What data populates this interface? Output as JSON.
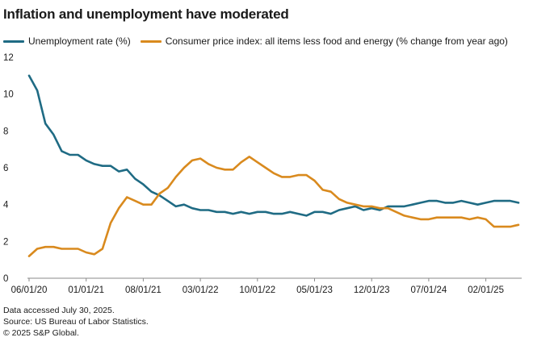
{
  "title": "Inflation and unemployment have moderated",
  "colors": {
    "unemployment": "#1f6b84",
    "cpi": "#d98a1e",
    "axis": "#8a8a8a"
  },
  "footer": {
    "line1": "Data accessed July 30, 2025.",
    "line2": "Source: US Bureau of Labor Statistics.",
    "line3": "© 2025 S&P Global."
  },
  "chart_data": {
    "type": "line",
    "title": "Inflation and unemployment have moderated",
    "xlabel": "",
    "ylabel": "",
    "ylim": [
      0,
      12
    ],
    "yticks": [
      0,
      2,
      4,
      6,
      8,
      10,
      12
    ],
    "xtick_labels": [
      "06/01/20",
      "01/01/21",
      "08/01/21",
      "03/01/22",
      "10/01/22",
      "05/01/23",
      "12/01/23",
      "07/01/24",
      "02/01/25"
    ],
    "xtick_index": [
      0,
      7,
      14,
      21,
      28,
      35,
      42,
      49,
      56
    ],
    "grid": false,
    "legend_position": "top",
    "start": "06/01/20",
    "end": "06/01/25",
    "frequency": "monthly",
    "series": [
      {
        "name": "Unemployment rate (%)",
        "color": "#1f6b84",
        "values": [
          11.0,
          10.2,
          8.4,
          7.8,
          6.9,
          6.7,
          6.7,
          6.4,
          6.2,
          6.1,
          6.1,
          5.8,
          5.9,
          5.4,
          5.1,
          4.7,
          4.5,
          4.2,
          3.9,
          4.0,
          3.8,
          3.7,
          3.7,
          3.6,
          3.6,
          3.5,
          3.6,
          3.5,
          3.6,
          3.6,
          3.5,
          3.5,
          3.6,
          3.5,
          3.4,
          3.6,
          3.6,
          3.5,
          3.7,
          3.8,
          3.9,
          3.7,
          3.8,
          3.7,
          3.9,
          3.9,
          3.9,
          4.0,
          4.1,
          4.2,
          4.2,
          4.1,
          4.1,
          4.2,
          4.1,
          4.0,
          4.1,
          4.2,
          4.2,
          4.2,
          4.1
        ]
      },
      {
        "name": "Consumer price index: all items less food and energy (% change from year ago)",
        "color": "#d98a1e",
        "values": [
          1.2,
          1.6,
          1.7,
          1.7,
          1.6,
          1.6,
          1.6,
          1.4,
          1.3,
          1.6,
          3.0,
          3.8,
          4.4,
          4.2,
          4.0,
          4.0,
          4.6,
          4.9,
          5.5,
          6.0,
          6.4,
          6.5,
          6.2,
          6.0,
          5.9,
          5.9,
          6.3,
          6.6,
          6.3,
          6.0,
          5.7,
          5.5,
          5.5,
          5.6,
          5.6,
          5.3,
          4.8,
          4.7,
          4.3,
          4.1,
          4.0,
          3.9,
          3.9,
          3.8,
          3.8,
          3.6,
          3.4,
          3.3,
          3.2,
          3.2,
          3.3,
          3.3,
          3.3,
          3.3,
          3.2,
          3.3,
          3.2,
          2.8,
          2.8,
          2.8,
          2.9
        ]
      }
    ]
  }
}
